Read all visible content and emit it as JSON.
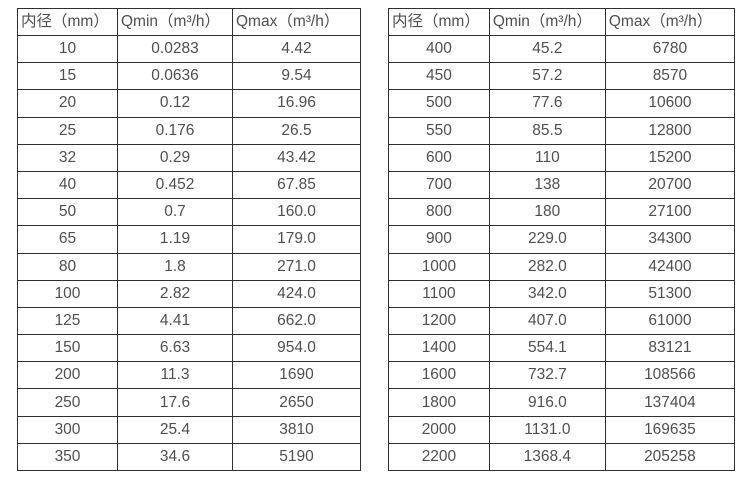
{
  "colors": {
    "background": "#ffffff",
    "table_border": "#2f2f2f",
    "text": "#4f4f4f"
  },
  "tables": [
    {
      "name": "flow-spec-table-small-diameters",
      "headers": [
        "内径（mm）",
        "Qmin（m³/h）",
        "Qmax（m³/h）"
      ],
      "rows": [
        [
          "10",
          "0.0283",
          "4.42"
        ],
        [
          "15",
          "0.0636",
          "9.54"
        ],
        [
          "20",
          "0.12",
          "16.96"
        ],
        [
          "25",
          "0.176",
          "26.5"
        ],
        [
          "32",
          "0.29",
          "43.42"
        ],
        [
          "40",
          "0.452",
          "67.85"
        ],
        [
          "50",
          "0.7",
          "160.0"
        ],
        [
          "65",
          "1.19",
          "179.0"
        ],
        [
          "80",
          "1.8",
          "271.0"
        ],
        [
          "100",
          "2.82",
          "424.0"
        ],
        [
          "125",
          "4.41",
          "662.0"
        ],
        [
          "150",
          "6.63",
          "954.0"
        ],
        [
          "200",
          "11.3",
          "1690"
        ],
        [
          "250",
          "17.6",
          "2650"
        ],
        [
          "300",
          "25.4",
          "3810"
        ],
        [
          "350",
          "34.6",
          "5190"
        ]
      ]
    },
    {
      "name": "flow-spec-table-large-diameters",
      "headers": [
        "内径（mm）",
        "Qmin（m³/h）",
        "Qmax（m³/h）"
      ],
      "rows": [
        [
          "400",
          "45.2",
          "6780"
        ],
        [
          "450",
          "57.2",
          "8570"
        ],
        [
          "500",
          "77.6",
          "10600"
        ],
        [
          "550",
          "85.5",
          "12800"
        ],
        [
          "600",
          "110",
          "15200"
        ],
        [
          "700",
          "138",
          "20700"
        ],
        [
          "800",
          "180",
          "27100"
        ],
        [
          "900",
          "229.0",
          "34300"
        ],
        [
          "1000",
          "282.0",
          "42400"
        ],
        [
          "1100",
          "342.0",
          "51300"
        ],
        [
          "1200",
          "407.0",
          "61000"
        ],
        [
          "1400",
          "554.1",
          "83121"
        ],
        [
          "1600",
          "732.7",
          "108566"
        ],
        [
          "1800",
          "916.0",
          "137404"
        ],
        [
          "2000",
          "1131.0",
          "169635"
        ],
        [
          "2200",
          "1368.4",
          "205258"
        ]
      ]
    }
  ]
}
